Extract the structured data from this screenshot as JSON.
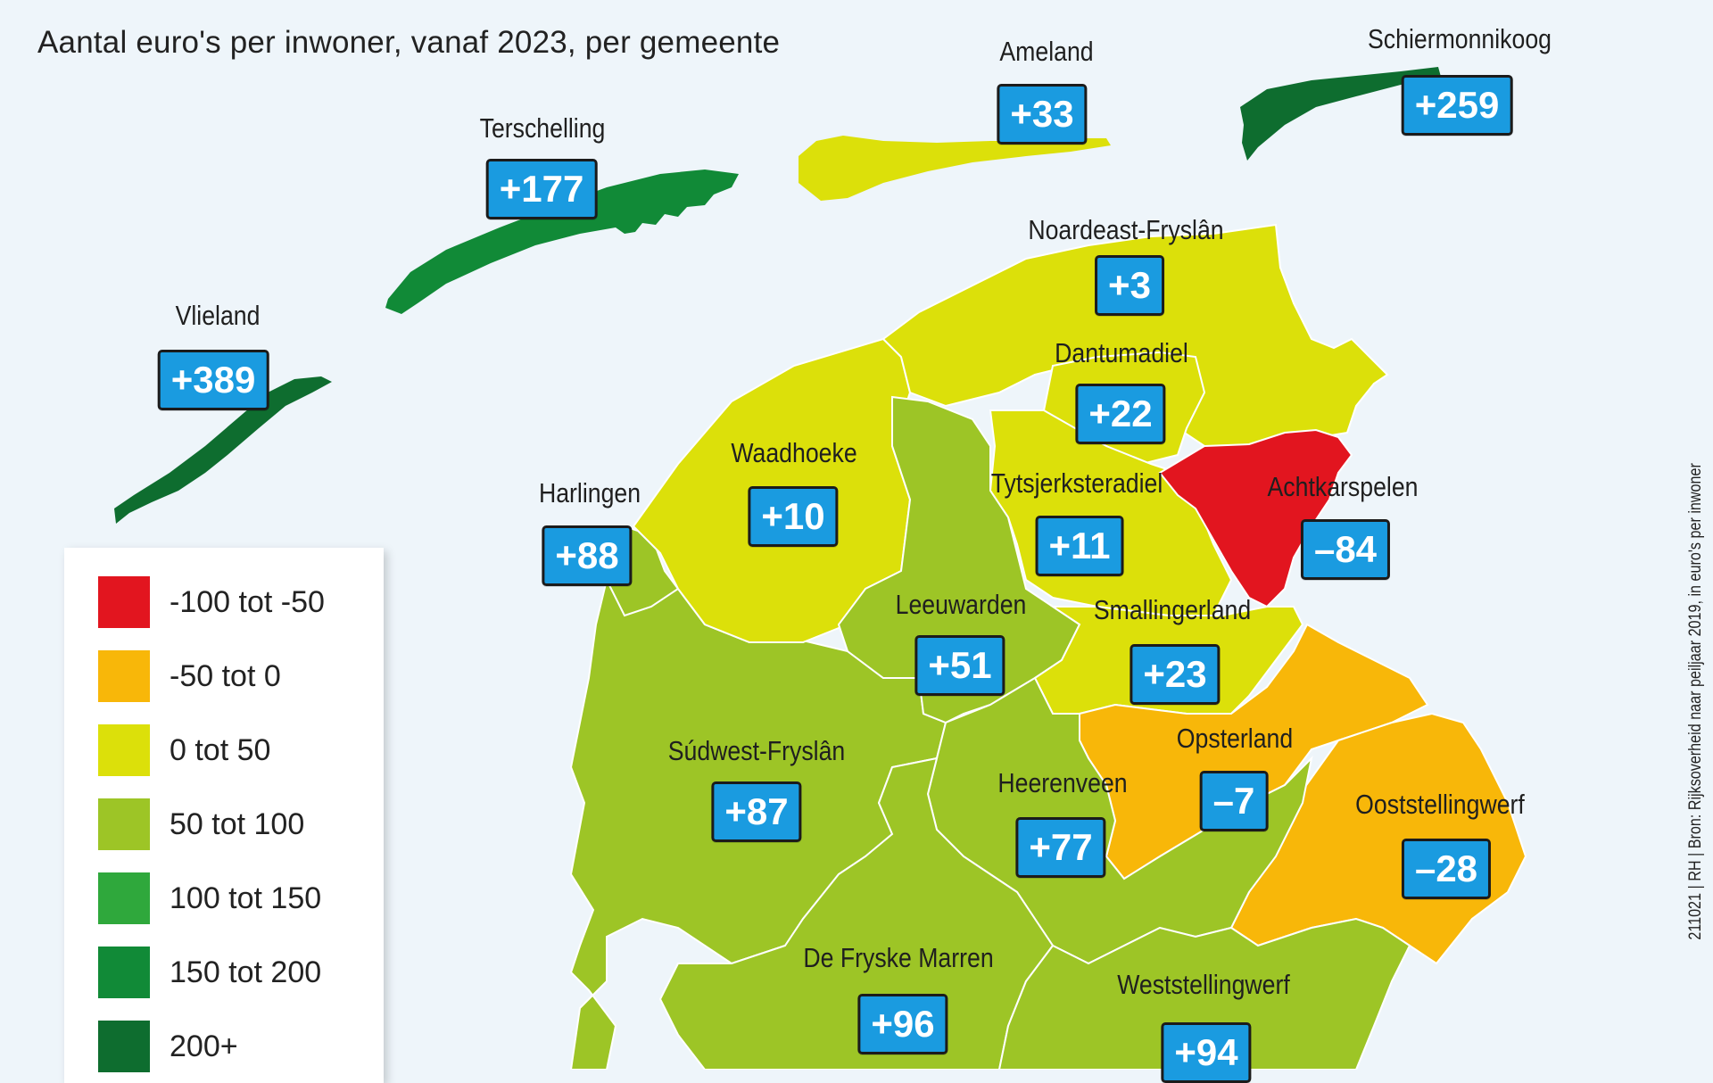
{
  "title": "Aantal euro's per inwoner, vanaf 2023, per gemeente",
  "colors": {
    "water": "#eef5fa",
    "red": "#e2151f",
    "orange": "#f8b709",
    "yellow": "#dce00a",
    "lightgreen": "#9dc526",
    "green": "#2fa83c",
    "darkgreen": "#118a37",
    "darkestgreen": "#0e6d2f",
    "badge": "#1a9be0"
  },
  "legend": [
    {
      "label": "-100 tot -50",
      "color": "#e2151f"
    },
    {
      "label": "-50 tot 0",
      "color": "#f8b709"
    },
    {
      "label": "0 tot 50",
      "color": "#dce00a"
    },
    {
      "label": "50 tot 100",
      "color": "#9dc526"
    },
    {
      "label": "100 tot 150",
      "color": "#2fa83c"
    },
    {
      "label": "150 tot 200",
      "color": "#118a37"
    },
    {
      "label": "200+",
      "color": "#0e6d2f"
    }
  ],
  "municipalities": [
    {
      "name": "Ameland",
      "value": "+33",
      "category": "0 tot 50"
    },
    {
      "name": "Schiermonnikoog",
      "value": "+259",
      "category": "200+"
    },
    {
      "name": "Terschelling",
      "value": "+177",
      "category": "150 tot 200"
    },
    {
      "name": "Vlieland",
      "value": "+389",
      "category": "200+"
    },
    {
      "name": "Noardeast-Fryslân",
      "value": "+3",
      "category": "0 tot 50"
    },
    {
      "name": "Dantumadiel",
      "value": "+22",
      "category": "0 tot 50"
    },
    {
      "name": "Waadhoeke",
      "value": "+10",
      "category": "0 tot 50"
    },
    {
      "name": "Harlingen",
      "value": "+88",
      "category": "50 tot 100"
    },
    {
      "name": "Tytsjerksteradiel",
      "value": "+11",
      "category": "0 tot 50"
    },
    {
      "name": "Achtkarspelen",
      "value": "–84",
      "category": "-100 tot -50"
    },
    {
      "name": "Leeuwarden",
      "value": "+51",
      "category": "50 tot 100"
    },
    {
      "name": "Smallingerland",
      "value": "+23",
      "category": "0 tot 50"
    },
    {
      "name": "Súdwest-Fryslân",
      "value": "+87",
      "category": "50 tot 100"
    },
    {
      "name": "Opsterland",
      "value": "–7",
      "category": "-50 tot 0"
    },
    {
      "name": "Heerenveen",
      "value": "+77",
      "category": "50 tot 100"
    },
    {
      "name": "Ooststellingwerf",
      "value": "–28",
      "category": "-50 tot 0"
    },
    {
      "name": "De Fryske Marren",
      "value": "+96",
      "category": "50 tot 100"
    },
    {
      "name": "Weststellingwerf",
      "value": "+94",
      "category": "50 tot 100"
    }
  ],
  "source": "211021 | RH | Bron: Rijksoverheid naar peiljaar 2019, in euro's per inwoner"
}
